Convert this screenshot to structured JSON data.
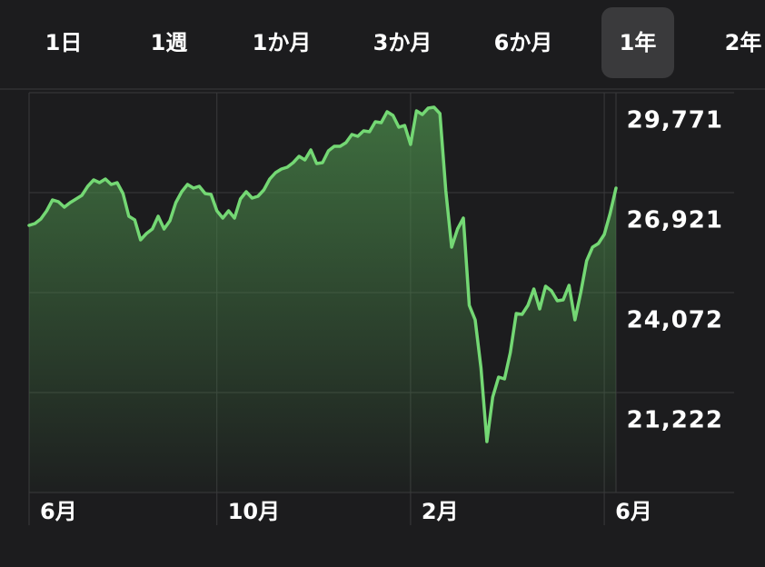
{
  "tabs": [
    "1日",
    "1週",
    "1か月",
    "3か月",
    "6か月",
    "1年",
    "2年"
  ],
  "selected_tab": 5,
  "chart_data": {
    "type": "line",
    "x": [
      0,
      1,
      2,
      3,
      4,
      5,
      6,
      7,
      8,
      9,
      10,
      11,
      12,
      13,
      14,
      15,
      16,
      17,
      18,
      19,
      20,
      21,
      22,
      23,
      24,
      25,
      26,
      27,
      28,
      29,
      30,
      31,
      32,
      33,
      34,
      35,
      36,
      37,
      38,
      39,
      40,
      41,
      42,
      43,
      44,
      45,
      46,
      47,
      48,
      49,
      50,
      51,
      52,
      53,
      54,
      55,
      56,
      57,
      58,
      59,
      60,
      61,
      62,
      63,
      64,
      65,
      66,
      67,
      68,
      69,
      70,
      71,
      72,
      73,
      74,
      75,
      76,
      77,
      78,
      79,
      80,
      81,
      82,
      83,
      84,
      85,
      86,
      87,
      88,
      89,
      90,
      91,
      92,
      93,
      94,
      95,
      96,
      97,
      98,
      99,
      100
    ],
    "series": [
      {
        "color": "#74d874",
        "values": [
          25989,
          26041,
          26170,
          26403,
          26714,
          26662,
          26507,
          26636,
          26740,
          26844,
          27103,
          27284,
          27206,
          27310,
          27155,
          27206,
          26895,
          26247,
          26144,
          25574,
          25755,
          25885,
          26247,
          25885,
          26118,
          26636,
          26947,
          27155,
          27051,
          27103,
          26895,
          26869,
          26403,
          26196,
          26403,
          26196,
          26740,
          26947,
          26766,
          26818,
          27000,
          27310,
          27491,
          27595,
          27647,
          27776,
          27958,
          27854,
          28139,
          27750,
          27776,
          28113,
          28242,
          28242,
          28346,
          28579,
          28527,
          28683,
          28657,
          28942,
          28916,
          29227,
          29123,
          28787,
          28838,
          28294,
          29253,
          29149,
          29331,
          29356,
          29175,
          26973,
          25367,
          25885,
          26196,
          23709,
          23295,
          21922,
          19823,
          21093,
          21663,
          21611,
          22362,
          23476,
          23450,
          23709,
          24175,
          23605,
          24253,
          24124,
          23838,
          23864,
          24279,
          23295,
          24072,
          24979,
          25367,
          25471,
          25730,
          26325,
          27051
        ]
      }
    ],
    "xlim": [
      0,
      100
    ],
    "xticks": [
      {
        "value": 0,
        "label": "6月"
      },
      {
        "value": 32,
        "label": "10月"
      },
      {
        "value": 65,
        "label": "2月"
      },
      {
        "value": 98,
        "label": "6月"
      }
    ],
    "ylim": [
      18372,
      29771
    ],
    "yticks": [
      {
        "value": 29771,
        "label": "29,771"
      },
      {
        "value": 26921,
        "label": "26,921"
      },
      {
        "value": 24072,
        "label": "24,072"
      },
      {
        "value": 21222,
        "label": "21,222"
      }
    ],
    "grid": true
  }
}
